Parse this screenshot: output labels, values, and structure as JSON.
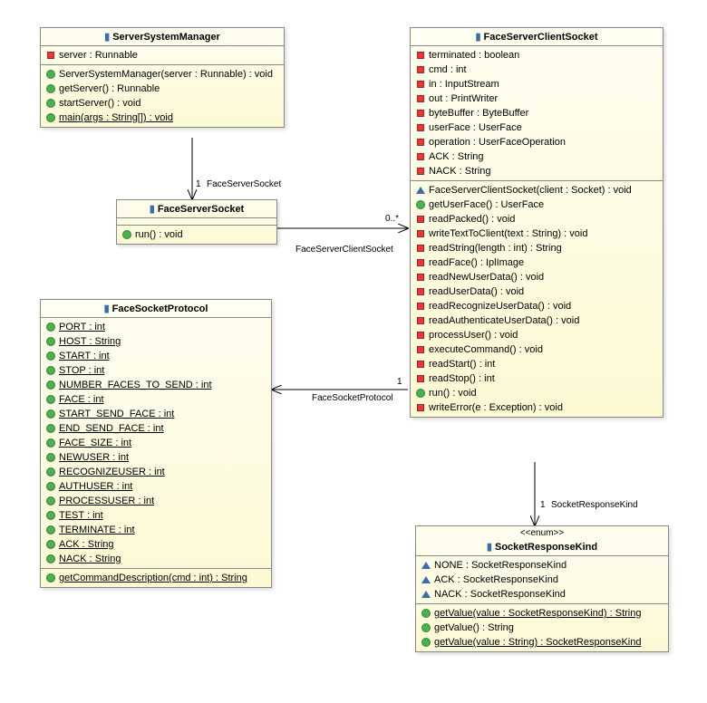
{
  "colors": {
    "box_bg_top": "#fffef0",
    "box_bg_bottom": "#fcf9d4",
    "border": "#888888",
    "public": "#4caf50",
    "private": "#e53935",
    "package": "#3a6ea5",
    "header_icon": "#3a6ea5"
  },
  "classes": {
    "ssm": {
      "title": "ServerSystemManager",
      "attrs": [
        {
          "vis": "private",
          "sig": "server : Runnable"
        }
      ],
      "ops": [
        {
          "vis": "public",
          "sig": "ServerSystemManager(server : Runnable) : void"
        },
        {
          "vis": "public",
          "sig": "getServer() : Runnable"
        },
        {
          "vis": "public",
          "sig": "startServer() : void"
        },
        {
          "vis": "public",
          "sig": "main(args : String[]) : void",
          "static": true
        }
      ]
    },
    "fss": {
      "title": "FaceServerSocket",
      "ops": [
        {
          "vis": "public",
          "sig": "run() : void"
        }
      ]
    },
    "fsp": {
      "title": "FaceSocketProtocol",
      "attrs": [
        {
          "vis": "public",
          "sig": "PORT : int",
          "static": true
        },
        {
          "vis": "public",
          "sig": "HOST : String",
          "static": true
        },
        {
          "vis": "public",
          "sig": "START : int",
          "static": true
        },
        {
          "vis": "public",
          "sig": "STOP : int",
          "static": true
        },
        {
          "vis": "public",
          "sig": "NUMBER_FACES_TO_SEND : int",
          "static": true
        },
        {
          "vis": "public",
          "sig": "FACE : int",
          "static": true
        },
        {
          "vis": "public",
          "sig": "START_SEND_FACE : int",
          "static": true
        },
        {
          "vis": "public",
          "sig": "END_SEND_FACE : int",
          "static": true
        },
        {
          "vis": "public",
          "sig": "FACE_SIZE : int",
          "static": true
        },
        {
          "vis": "public",
          "sig": "NEWUSER : int",
          "static": true
        },
        {
          "vis": "public",
          "sig": "RECOGNIZEUSER : int",
          "static": true
        },
        {
          "vis": "public",
          "sig": "AUTHUSER : int",
          "static": true
        },
        {
          "vis": "public",
          "sig": "PROCESSUSER : int",
          "static": true
        },
        {
          "vis": "public",
          "sig": "TEST : int",
          "static": true
        },
        {
          "vis": "public",
          "sig": "TERMINATE : int",
          "static": true
        },
        {
          "vis": "public",
          "sig": "ACK : String",
          "static": true
        },
        {
          "vis": "public",
          "sig": "NACK : String",
          "static": true
        }
      ],
      "ops": [
        {
          "vis": "public",
          "sig": "getCommandDescription(cmd : int) : String",
          "static": true
        }
      ]
    },
    "fscs": {
      "title": "FaceServerClientSocket",
      "attrs": [
        {
          "vis": "private",
          "sig": "terminated : boolean"
        },
        {
          "vis": "private",
          "sig": "cmd : int"
        },
        {
          "vis": "private",
          "sig": "in : InputStream"
        },
        {
          "vis": "private",
          "sig": "out : PrintWriter"
        },
        {
          "vis": "private",
          "sig": "byteBuffer : ByteBuffer"
        },
        {
          "vis": "private",
          "sig": "userFace : UserFace"
        },
        {
          "vis": "private",
          "sig": "operation : UserFaceOperation"
        },
        {
          "vis": "private",
          "sig": "ACK : String"
        },
        {
          "vis": "private",
          "sig": "NACK : String"
        }
      ],
      "ops": [
        {
          "vis": "package",
          "sig": "FaceServerClientSocket(client : Socket) : void"
        },
        {
          "vis": "public",
          "sig": "getUserFace() : UserFace"
        },
        {
          "vis": "private",
          "sig": "readPacked() : void"
        },
        {
          "vis": "private",
          "sig": "writeTextToClient(text : String) : void"
        },
        {
          "vis": "private",
          "sig": "readString(length : int) : String"
        },
        {
          "vis": "private",
          "sig": "readFace() : IplImage"
        },
        {
          "vis": "private",
          "sig": "readNewUserData() : void"
        },
        {
          "vis": "private",
          "sig": "readUserData() : void"
        },
        {
          "vis": "private",
          "sig": "readRecognizeUserData() : void"
        },
        {
          "vis": "private",
          "sig": "readAuthenticateUserData() : void"
        },
        {
          "vis": "private",
          "sig": "processUser() : void"
        },
        {
          "vis": "private",
          "sig": "executeCommand() : void"
        },
        {
          "vis": "private",
          "sig": "readStart() : int"
        },
        {
          "vis": "private",
          "sig": "readStop() : int"
        },
        {
          "vis": "public",
          "sig": "run() : void"
        },
        {
          "vis": "private",
          "sig": "writeError(e : Exception) : void"
        }
      ]
    },
    "srk": {
      "title": "SocketResponseKind",
      "stereotype": "<<enum>>",
      "literals": [
        {
          "vis": "package",
          "sig": "NONE : SocketResponseKind"
        },
        {
          "vis": "package",
          "sig": "ACK : SocketResponseKind"
        },
        {
          "vis": "package",
          "sig": "NACK : SocketResponseKind"
        }
      ],
      "ops": [
        {
          "vis": "public",
          "sig": "getValue(value : SocketResponseKind) : String",
          "static": true
        },
        {
          "vis": "public",
          "sig": "getValue() : String"
        },
        {
          "vis": "public",
          "sig": "getValue(value : String) : SocketResponseKind",
          "static": true
        }
      ]
    }
  },
  "connectors": {
    "ssm_fss": {
      "mult": "1",
      "role": "FaceServerSocket"
    },
    "fss_fscs": {
      "mult": "0..*",
      "role": "FaceServerClientSocket"
    },
    "fscs_fsp": {
      "mult": "1",
      "role": "FaceSocketProtocol"
    },
    "fscs_srk": {
      "mult": "1",
      "role": "SocketResponseKind"
    }
  }
}
